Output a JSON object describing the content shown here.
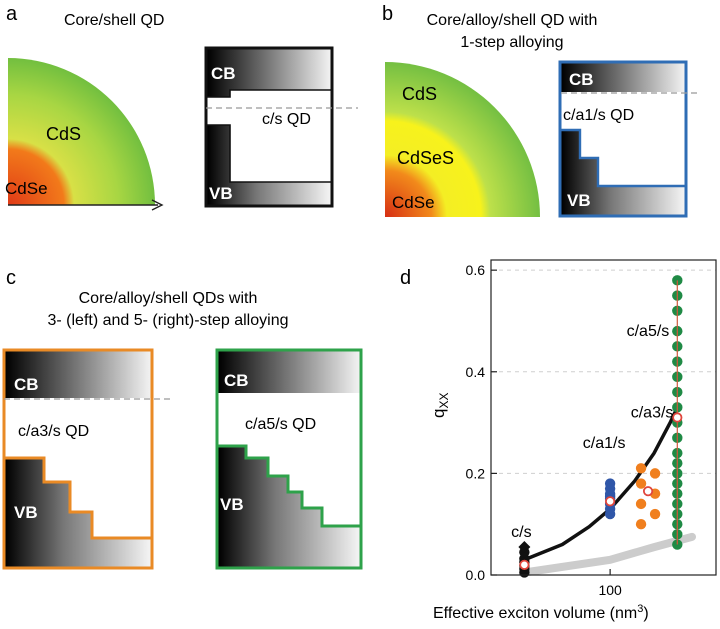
{
  "panel_a": {
    "letter": "a",
    "title": "Core/shell QD",
    "layers": {
      "shell": "CdS",
      "core": "CdSe"
    },
    "band": {
      "cb": "CB",
      "vb": "VB",
      "label": "c/s QD"
    }
  },
  "panel_b": {
    "letter": "b",
    "title_line1": "Core/alloy/shell QD with",
    "title_line2": "1-step alloying",
    "layers": {
      "shell": "CdS",
      "alloy": "CdSeS",
      "core": "CdSe"
    },
    "band": {
      "cb": "CB",
      "vb": "VB",
      "label": "c/a1/s QD"
    }
  },
  "panel_c": {
    "letter": "c",
    "title_line1": "Core/alloy/shell QDs with",
    "title_line2": "3- (left) and 5- (right)-step alloying",
    "left": {
      "cb": "CB",
      "vb": "VB",
      "label": "c/a3/s QD"
    },
    "right": {
      "cb": "CB",
      "vb": "VB",
      "label": "c/a5/s QD"
    }
  },
  "colors": {
    "shell_green": "#7bc043",
    "alloy_yellow": "#f2ea1c",
    "core_red": "#d9401a",
    "frame_a": "#111111",
    "frame_b": "#2f6db5",
    "frame_c_left": "#e98a25",
    "frame_c_right": "#2ea24a",
    "c_s_series": "#111111",
    "c_a1_s_series": "#2f56a8",
    "c_a3_s_series": "#f07f1e",
    "c_a5_s_series": "#1f8a45",
    "mean_marker": "#e0463c"
  },
  "chart_data": {
    "panel_letter": "d",
    "type": "scatter",
    "xlabel": "Effective exciton volume (nm",
    "xlabel_sup": "3",
    "xlabel_end": ")",
    "ylabel": "q",
    "ylabel_sub": "XX",
    "x_scale": "log",
    "x_ticks": [
      {
        "value": 100,
        "label": "100"
      }
    ],
    "ylim": [
      0,
      0.62
    ],
    "y_ticks": [
      {
        "value": 0.0,
        "label": "0.0"
      },
      {
        "value": 0.2,
        "label": "0.2"
      },
      {
        "value": 0.4,
        "label": "0.4"
      },
      {
        "value": 0.6,
        "label": "0.6"
      }
    ],
    "grid": "horizontal dashed",
    "series": [
      {
        "name": "c/s",
        "x": 40,
        "color": "#111111",
        "values": [
          0.005,
          0.012,
          0.018,
          0.025,
          0.032,
          0.045,
          0.055
        ]
      },
      {
        "name": "c/a1/s",
        "x": 100,
        "color": "#2f56a8",
        "values": [
          0.12,
          0.13,
          0.14,
          0.15,
          0.155,
          0.16,
          0.17,
          0.18
        ]
      },
      {
        "name": "c/a3/s",
        "x": 150,
        "color": "#f07f1e",
        "values": [
          0.1,
          0.12,
          0.14,
          0.16,
          0.18,
          0.2,
          0.21
        ]
      },
      {
        "name": "c/a5/s",
        "x": 205,
        "color": "#1f8a45",
        "values": [
          0.06,
          0.08,
          0.1,
          0.12,
          0.14,
          0.16,
          0.18,
          0.2,
          0.22,
          0.24,
          0.27,
          0.3,
          0.33,
          0.36,
          0.39,
          0.42,
          0.45,
          0.48,
          0.52,
          0.55,
          0.58
        ]
      }
    ],
    "means": [
      {
        "x": 40,
        "y": 0.02
      },
      {
        "x": 100,
        "y": 0.145
      },
      {
        "x": 150,
        "y": 0.165
      },
      {
        "x": 205,
        "y": 0.31
      }
    ],
    "fit_curve": {
      "color": "#111111",
      "points": [
        [
          40,
          0.03
        ],
        [
          60,
          0.06
        ],
        [
          80,
          0.095
        ],
        [
          100,
          0.13
        ],
        [
          130,
          0.185
        ],
        [
          160,
          0.24
        ],
        [
          190,
          0.3
        ],
        [
          205,
          0.33
        ]
      ]
    },
    "lower_band": {
      "color": "#cccccc",
      "points": [
        [
          40,
          0.005
        ],
        [
          100,
          0.03
        ],
        [
          160,
          0.055
        ],
        [
          240,
          0.075
        ]
      ]
    }
  }
}
